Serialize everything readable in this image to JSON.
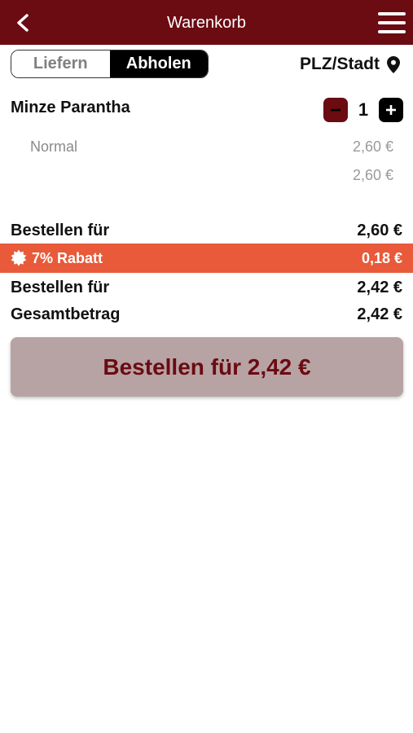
{
  "colors": {
    "header_bg": "#6b0b12",
    "discount_bg": "#e85a3a",
    "order_button_bg": "#b8a3a4",
    "order_button_text": "#6b0b12"
  },
  "header": {
    "title": "Warenkorb",
    "back_icon": "chevron-left-icon",
    "menu_icon": "hamburger-menu-icon"
  },
  "delivery_toggle": {
    "options": [
      "Liefern",
      "Abholen"
    ],
    "selected": "Abholen"
  },
  "location": {
    "label": "PLZ/Stadt",
    "icon": "map-pin-icon"
  },
  "cart": {
    "items": [
      {
        "name": "Minze Parantha",
        "quantity": "1",
        "variant": "Normal",
        "variant_price": "2,60 €",
        "item_total": "2,60 €"
      }
    ]
  },
  "summary": {
    "subtotal_label": "Bestellen für",
    "subtotal_value": "2,60 €",
    "discount_label": "7% Rabatt",
    "discount_value": "0,18 €",
    "discount_icon": "badge-icon",
    "after_discount_label": "Bestellen für",
    "after_discount_value": "2,42 €",
    "total_label": "Gesamtbetrag",
    "total_value": "2,42 €"
  },
  "order_button": {
    "label": "Bestellen für 2,42 €"
  }
}
